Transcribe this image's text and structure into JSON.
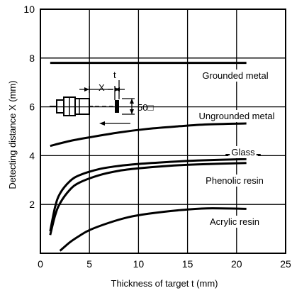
{
  "chart_data": {
    "type": "line",
    "xlabel": "Thickness of target t (mm)",
    "ylabel": "Detecting distance X (mm)",
    "xlim": [
      0,
      25
    ],
    "ylim": [
      0,
      10
    ],
    "xticks": [
      0,
      5,
      10,
      15,
      20,
      25
    ],
    "yticks": [
      2,
      4,
      6,
      8,
      10
    ],
    "grid": true,
    "series": [
      {
        "name": "Grounded metal",
        "x": [
          1,
          21
        ],
        "y": [
          7.8,
          7.8
        ]
      },
      {
        "name": "Ungrounded metal",
        "x": [
          1,
          3,
          5,
          8,
          11,
          14,
          17,
          21
        ],
        "y": [
          4.4,
          4.6,
          4.75,
          4.95,
          5.1,
          5.2,
          5.28,
          5.32
        ]
      },
      {
        "name": "Glass",
        "x": [
          1,
          1.5,
          2,
          3,
          4,
          6,
          8,
          10,
          13,
          16,
          21
        ],
        "y": [
          0.9,
          1.9,
          2.45,
          2.95,
          3.2,
          3.45,
          3.58,
          3.66,
          3.74,
          3.8,
          3.86
        ]
      },
      {
        "name": "Phenolic resin",
        "x": [
          1,
          1.5,
          2,
          3,
          4,
          6,
          8,
          10,
          13,
          16,
          21
        ],
        "y": [
          0.75,
          1.55,
          2.05,
          2.6,
          2.9,
          3.2,
          3.38,
          3.48,
          3.58,
          3.64,
          3.7
        ]
      },
      {
        "name": "Acrylic resin",
        "x": [
          2,
          3,
          4,
          5,
          7,
          9,
          11,
          14,
          17,
          21
        ],
        "y": [
          0.1,
          0.45,
          0.72,
          0.95,
          1.25,
          1.48,
          1.62,
          1.76,
          1.84,
          1.82
        ]
      }
    ],
    "annotations": {
      "x_marker": "X",
      "t_marker": "t",
      "size_label": "50□"
    }
  }
}
